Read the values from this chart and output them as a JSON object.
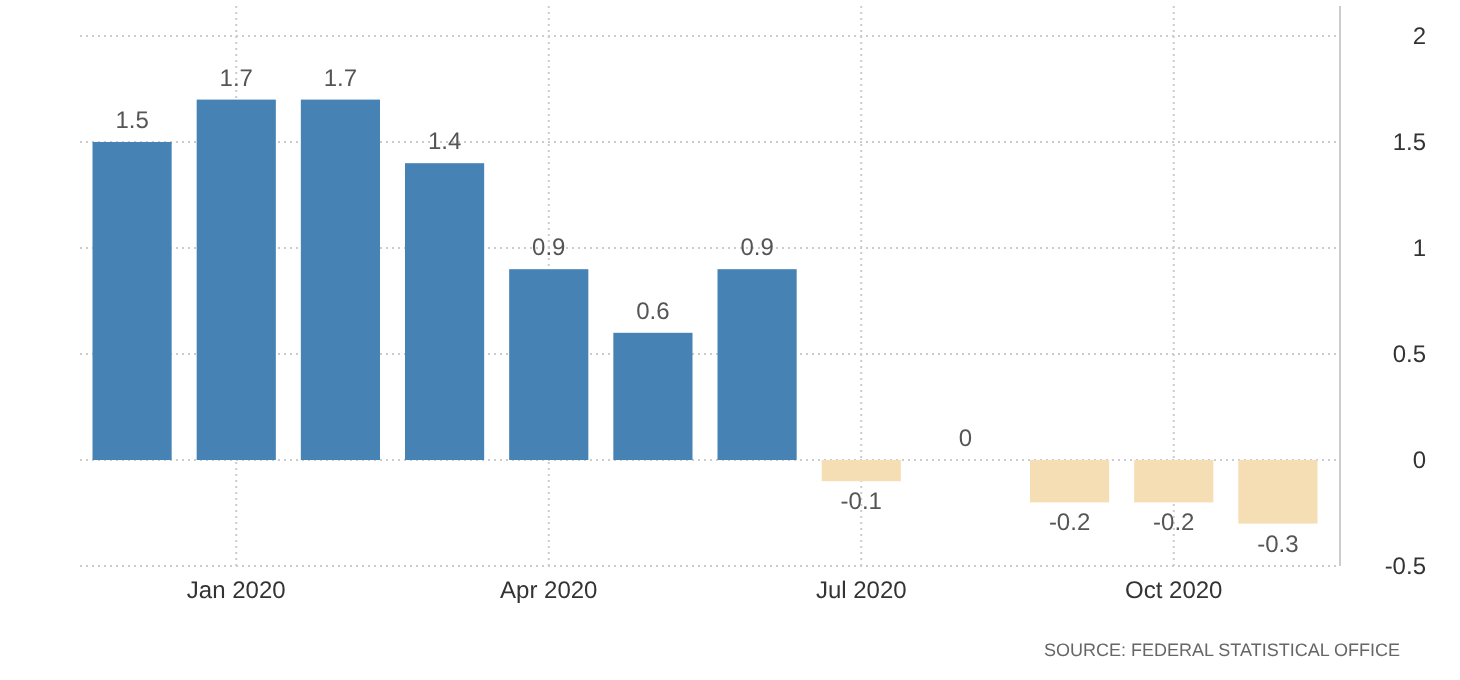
{
  "chart_data": {
    "type": "bar",
    "categories": [
      null,
      "Jan 2020",
      null,
      null,
      "Apr 2020",
      null,
      null,
      "Jul 2020",
      null,
      null,
      "Oct 2020",
      null
    ],
    "values": [
      1.5,
      1.7,
      1.7,
      1.4,
      0.9,
      0.6,
      0.9,
      -0.1,
      0,
      -0.2,
      -0.2,
      -0.3
    ],
    "colors": [
      "#4682b4",
      "#4682b4",
      "#4682b4",
      "#4682b4",
      "#4682b4",
      "#4682b4",
      "#4682b4",
      "#f5deb3",
      "#f5deb3",
      "#f5deb3",
      "#f5deb3",
      "#f5deb3"
    ],
    "ylim": [
      -0.5,
      2
    ],
    "yticks": [
      -0.5,
      0,
      0.5,
      1,
      1.5,
      2
    ],
    "grid": true,
    "data_labels": true,
    "annotations": [
      "SOURCE: FEDERAL STATISTICAL OFFICE"
    ]
  }
}
